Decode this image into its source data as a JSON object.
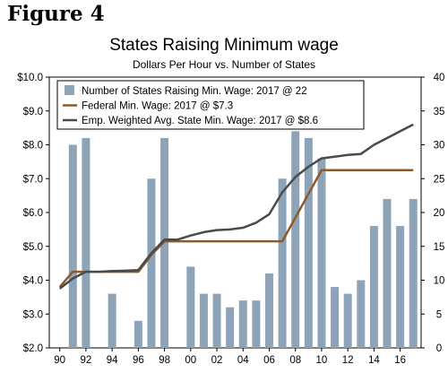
{
  "figure_label": "Figure 4",
  "chart_data": {
    "type": "bar",
    "title": "States Raising Minimum wage",
    "subtitle": "Dollars Per Hour vs. Number of States",
    "left_axis": {
      "ylim": [
        2.0,
        10.0
      ],
      "ticks": [
        "$2.0",
        "$3.0",
        "$4.0",
        "$5.0",
        "$6.0",
        "$7.0",
        "$8.0",
        "$9.0",
        "$10.0"
      ],
      "tick_values": [
        2,
        3,
        4,
        5,
        6,
        7,
        8,
        9,
        10
      ]
    },
    "right_axis": {
      "ylim": [
        0,
        40
      ],
      "ticks": [
        "0",
        "5",
        "10",
        "15",
        "20",
        "25",
        "30",
        "35",
        "40"
      ],
      "tick_values": [
        0,
        5,
        10,
        15,
        20,
        25,
        30,
        35,
        40
      ]
    },
    "x_ticks": [
      "90",
      "92",
      "94",
      "96",
      "98",
      "00",
      "02",
      "04",
      "06",
      "08",
      "10",
      "12",
      "14",
      "16"
    ],
    "x_tick_years": [
      1990,
      1992,
      1994,
      1996,
      1998,
      2000,
      2002,
      2004,
      2006,
      2008,
      2010,
      2012,
      2014,
      2016
    ],
    "grid": false,
    "legend_position": "top-left",
    "series": [
      {
        "name": "Number of States Raising Min. Wage: 2017 @ 22",
        "kind": "bar",
        "axis": "right",
        "color": "#8da4b8",
        "x": [
          1991,
          1992,
          1994,
          1996,
          1997,
          1998,
          2000,
          2001,
          2002,
          2003,
          2004,
          2005,
          2006,
          2007,
          2008,
          2009,
          2010,
          2011,
          2012,
          2013,
          2014,
          2015,
          2016,
          2017
        ],
        "values": [
          30,
          31,
          8,
          4,
          25,
          31,
          12,
          8,
          8,
          6,
          7,
          7,
          11,
          25,
          32,
          31,
          28,
          9,
          8,
          10,
          18,
          22,
          18,
          22
        ]
      },
      {
        "name": "Federal Min. Wage: 2017 @ $7.3",
        "kind": "line",
        "axis": "left",
        "color": "#8b5a2b",
        "x": [
          1990,
          1991,
          1992,
          1993,
          1994,
          1995,
          1996,
          1997,
          1998,
          1999,
          2000,
          2001,
          2002,
          2003,
          2004,
          2005,
          2006,
          2007,
          2008,
          2009,
          2010,
          2011,
          2012,
          2013,
          2014,
          2015,
          2016,
          2017
        ],
        "values": [
          3.8,
          4.25,
          4.25,
          4.25,
          4.25,
          4.25,
          4.25,
          4.75,
          5.15,
          5.15,
          5.15,
          5.15,
          5.15,
          5.15,
          5.15,
          5.15,
          5.15,
          5.15,
          5.85,
          6.55,
          7.25,
          7.25,
          7.25,
          7.25,
          7.25,
          7.25,
          7.25,
          7.25
        ]
      },
      {
        "name": "Emp. Weighted Avg. State Min. Wage: 2017 @ $8.6",
        "kind": "line",
        "axis": "left",
        "color": "#4a4a4a",
        "x": [
          1990,
          1991,
          1992,
          1993,
          1994,
          1995,
          1996,
          1997,
          1998,
          1999,
          2000,
          2001,
          2002,
          2003,
          2004,
          2005,
          2006,
          2007,
          2008,
          2009,
          2010,
          2011,
          2012,
          2013,
          2014,
          2015,
          2016,
          2017
        ],
        "values": [
          3.75,
          4.05,
          4.25,
          4.25,
          4.27,
          4.28,
          4.3,
          4.8,
          5.2,
          5.2,
          5.32,
          5.42,
          5.48,
          5.5,
          5.55,
          5.7,
          5.95,
          6.6,
          7.05,
          7.35,
          7.6,
          7.65,
          7.7,
          7.73,
          8.0,
          8.2,
          8.4,
          8.6
        ]
      }
    ]
  }
}
